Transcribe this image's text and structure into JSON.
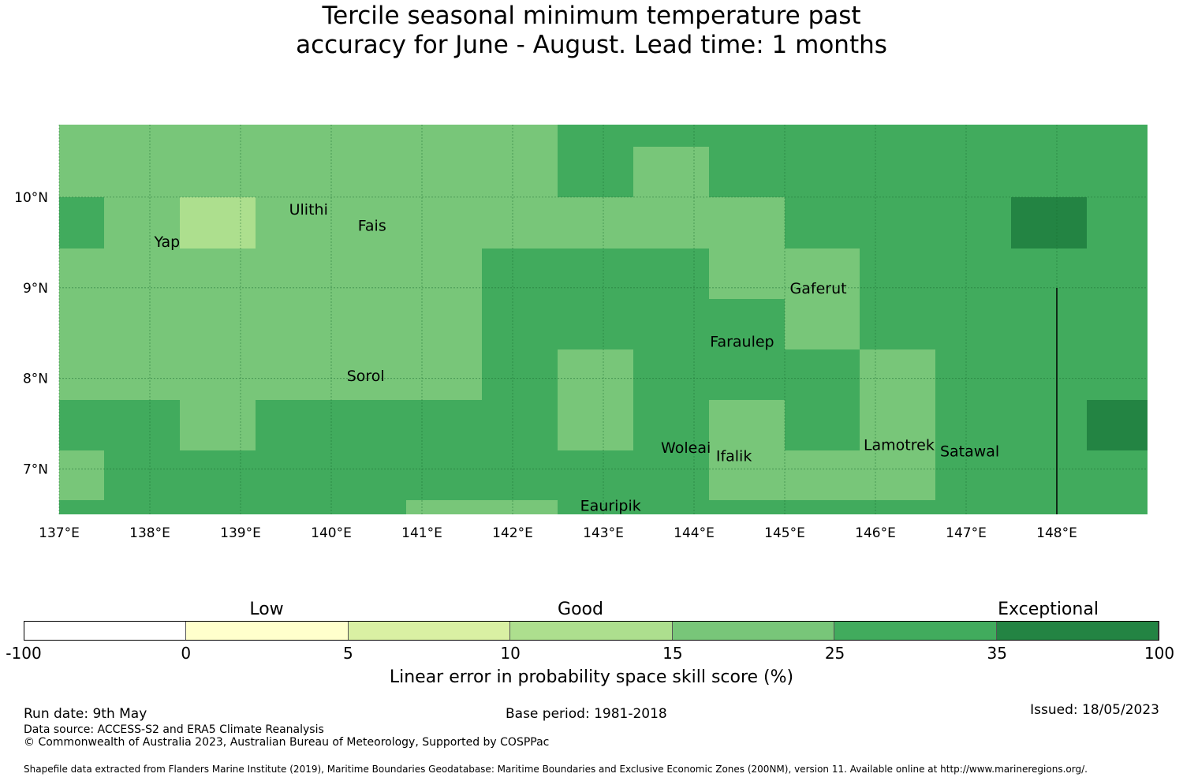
{
  "title": {
    "line1": "Tercile seasonal minimum temperature past",
    "line2": "accuracy for June - August. Lead time: 1 months"
  },
  "map": {
    "lon_range": [
      137.0,
      149.0
    ],
    "lat_range": [
      6.5,
      10.8
    ],
    "x_ticks": [
      "137°E",
      "138°E",
      "139°E",
      "140°E",
      "141°E",
      "142°E",
      "143°E",
      "144°E",
      "145°E",
      "146°E",
      "147°E",
      "148°E"
    ],
    "y_ticks": [
      "10°N",
      "9°N",
      "8°N",
      "7°N"
    ],
    "x_tick_values": [
      137,
      138,
      139,
      140,
      141,
      142,
      143,
      144,
      145,
      146,
      147,
      148
    ],
    "y_tick_values": [
      10,
      9,
      8,
      7
    ],
    "colors": {
      "c10_15": "#addf8e",
      "c15_25": "#78c679",
      "c25_35": "#41ab5d",
      "c35_100": "#238443"
    },
    "places": [
      {
        "name": "Ulithi",
        "lon": 139.75,
        "lat": 9.87
      },
      {
        "name": "Fais",
        "lon": 140.45,
        "lat": 9.69
      },
      {
        "name": "Yap",
        "lon": 138.19,
        "lat": 9.51
      },
      {
        "name": "Gaferut",
        "lon": 145.37,
        "lat": 9.0
      },
      {
        "name": "Faraulep",
        "lon": 144.53,
        "lat": 8.41
      },
      {
        "name": "Sorol",
        "lon": 140.38,
        "lat": 8.03
      },
      {
        "name": "Woleai",
        "lon": 143.91,
        "lat": 7.24
      },
      {
        "name": "Ifalik",
        "lon": 144.44,
        "lat": 7.15
      },
      {
        "name": "Lamotrek",
        "lon": 146.26,
        "lat": 7.27
      },
      {
        "name": "Satawal",
        "lon": 147.04,
        "lat": 7.2
      },
      {
        "name": "Eauripik",
        "lon": 143.08,
        "lat": 6.6
      }
    ]
  },
  "colorbar": {
    "bins": [
      {
        "from": "-100",
        "to": "0",
        "color": "#ffffff"
      },
      {
        "from": "0",
        "to": "5",
        "color": "#ffffcc"
      },
      {
        "from": "5",
        "to": "10",
        "color": "#d9f0a3"
      },
      {
        "from": "10",
        "to": "15",
        "color": "#addf8e"
      },
      {
        "from": "15",
        "to": "25",
        "color": "#78c679"
      },
      {
        "from": "25",
        "to": "35",
        "color": "#41ab5d"
      },
      {
        "from": "35",
        "to": "100",
        "color": "#238443"
      }
    ],
    "ticks": [
      "-100",
      "0",
      "5",
      "10",
      "15",
      "25",
      "35",
      "100"
    ],
    "categories": {
      "low": "Low",
      "good": "Good",
      "exceptional": "Exceptional"
    },
    "label": "Linear error in probability space skill score (%)"
  },
  "footer": {
    "run_date": "Run date: 9th May",
    "base_period": "Base period: 1981-2018",
    "issued": "Issued: 18/05/2023",
    "data_source": "Data source: ACCESS-S2 and ERA5 Climate Reanalysis",
    "copyright": "© Commonwealth of Australia 2023, Australian Bureau of Meteorology, Supported by COSPPac",
    "shapefile": "Shapefile data extracted from Flanders Marine Institute (2019), Maritime Boundaries Geodatabase: Maritime Boundaries and Exclusive Economic Zones (200NM), version 11. Available online at http://www.marineregions.org/."
  }
}
